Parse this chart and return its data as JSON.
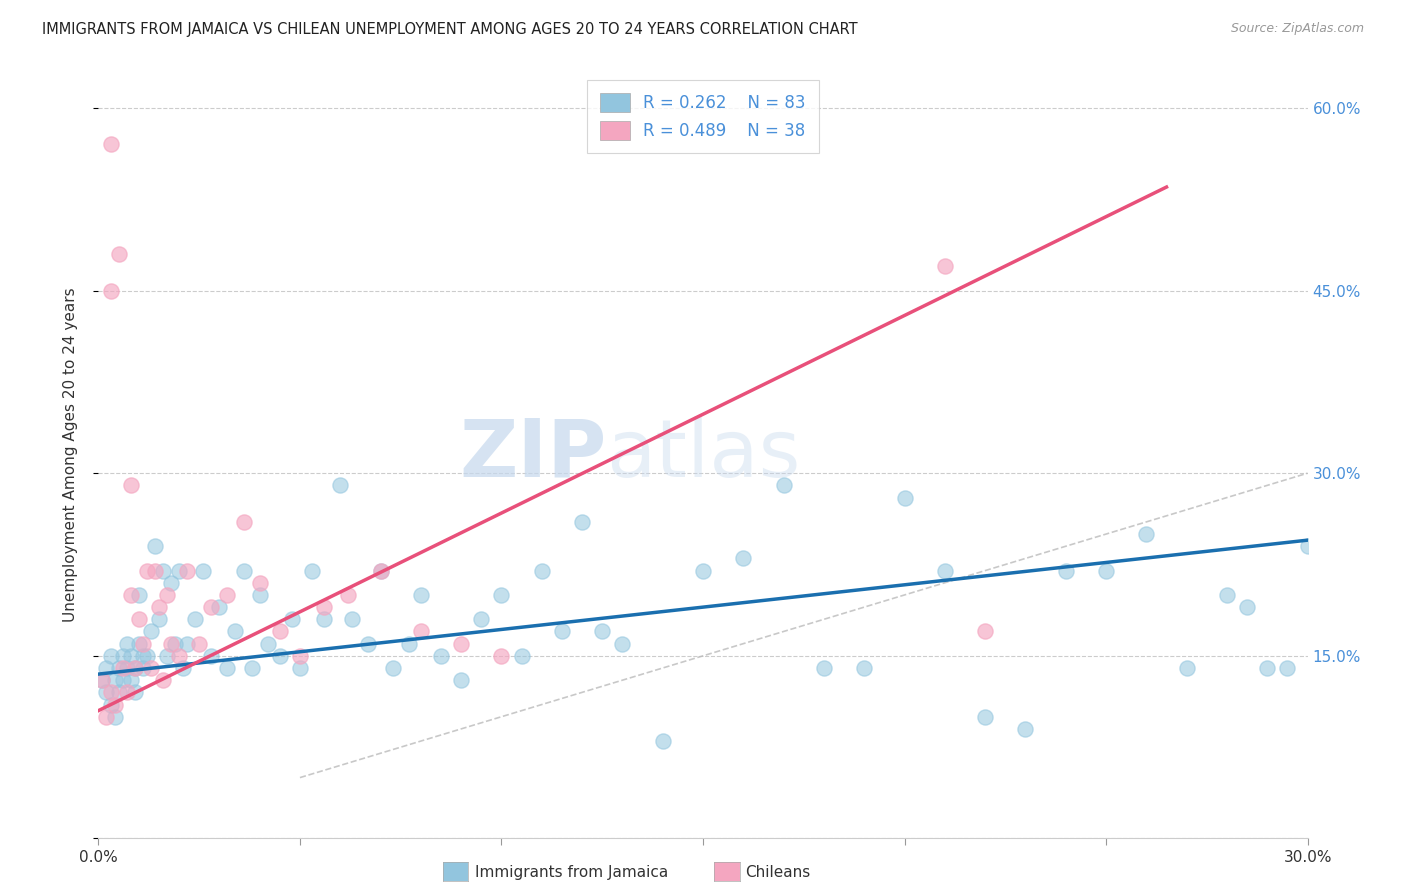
{
  "title": "IMMIGRANTS FROM JAMAICA VS CHILEAN UNEMPLOYMENT AMONG AGES 20 TO 24 YEARS CORRELATION CHART",
  "source": "Source: ZipAtlas.com",
  "ylabel": "Unemployment Among Ages 20 to 24 years",
  "x_min": 0.0,
  "x_max": 0.3,
  "y_min": 0.05,
  "y_max": 0.63,
  "x_ticks": [
    0.0,
    0.05,
    0.1,
    0.15,
    0.2,
    0.25,
    0.3
  ],
  "y_ticks": [
    0.0,
    0.15,
    0.3,
    0.45,
    0.6
  ],
  "y_tick_labels_right": [
    "",
    "15.0%",
    "30.0%",
    "45.0%",
    "60.0%"
  ],
  "legend_r1": "R = 0.262",
  "legend_n1": "N = 83",
  "legend_r2": "R = 0.489",
  "legend_n2": "N = 38",
  "color_blue": "#92c5de",
  "color_pink": "#f4a6c0",
  "color_blue_line": "#1a6faf",
  "color_pink_line": "#e8507a",
  "color_dashed_diag": "#bbbbbb",
  "watermark_zip": "ZIP",
  "watermark_atlas": "atlas",
  "blue_scatter_x": [
    0.001,
    0.002,
    0.002,
    0.003,
    0.003,
    0.004,
    0.004,
    0.005,
    0.005,
    0.006,
    0.006,
    0.007,
    0.007,
    0.008,
    0.008,
    0.009,
    0.009,
    0.01,
    0.01,
    0.011,
    0.011,
    0.012,
    0.013,
    0.014,
    0.015,
    0.016,
    0.017,
    0.018,
    0.019,
    0.02,
    0.021,
    0.022,
    0.024,
    0.026,
    0.028,
    0.03,
    0.032,
    0.034,
    0.036,
    0.038,
    0.04,
    0.042,
    0.045,
    0.048,
    0.05,
    0.053,
    0.056,
    0.06,
    0.063,
    0.067,
    0.07,
    0.073,
    0.077,
    0.08,
    0.085,
    0.09,
    0.095,
    0.1,
    0.105,
    0.11,
    0.115,
    0.12,
    0.125,
    0.13,
    0.14,
    0.15,
    0.16,
    0.17,
    0.18,
    0.19,
    0.2,
    0.21,
    0.22,
    0.23,
    0.24,
    0.25,
    0.26,
    0.27,
    0.28,
    0.285,
    0.29,
    0.295,
    0.3
  ],
  "blue_scatter_y": [
    0.13,
    0.14,
    0.12,
    0.15,
    0.11,
    0.13,
    0.1,
    0.14,
    0.12,
    0.15,
    0.13,
    0.14,
    0.16,
    0.13,
    0.15,
    0.14,
    0.12,
    0.16,
    0.2,
    0.15,
    0.14,
    0.15,
    0.17,
    0.24,
    0.18,
    0.22,
    0.15,
    0.21,
    0.16,
    0.22,
    0.14,
    0.16,
    0.18,
    0.22,
    0.15,
    0.19,
    0.14,
    0.17,
    0.22,
    0.14,
    0.2,
    0.16,
    0.15,
    0.18,
    0.14,
    0.22,
    0.18,
    0.29,
    0.18,
    0.16,
    0.22,
    0.14,
    0.16,
    0.2,
    0.15,
    0.13,
    0.18,
    0.2,
    0.15,
    0.22,
    0.17,
    0.26,
    0.17,
    0.16,
    0.08,
    0.22,
    0.23,
    0.29,
    0.14,
    0.14,
    0.28,
    0.22,
    0.1,
    0.09,
    0.22,
    0.22,
    0.25,
    0.14,
    0.2,
    0.19,
    0.14,
    0.14,
    0.24
  ],
  "pink_scatter_x": [
    0.001,
    0.002,
    0.003,
    0.003,
    0.004,
    0.005,
    0.006,
    0.007,
    0.008,
    0.009,
    0.01,
    0.011,
    0.012,
    0.013,
    0.014,
    0.015,
    0.016,
    0.017,
    0.018,
    0.02,
    0.022,
    0.025,
    0.028,
    0.032,
    0.036,
    0.04,
    0.045,
    0.05,
    0.056,
    0.062,
    0.07,
    0.08,
    0.09,
    0.1,
    0.21,
    0.22,
    0.003,
    0.008
  ],
  "pink_scatter_y": [
    0.13,
    0.1,
    0.12,
    0.57,
    0.11,
    0.48,
    0.14,
    0.12,
    0.2,
    0.14,
    0.18,
    0.16,
    0.22,
    0.14,
    0.22,
    0.19,
    0.13,
    0.2,
    0.16,
    0.15,
    0.22,
    0.16,
    0.19,
    0.2,
    0.26,
    0.21,
    0.17,
    0.15,
    0.19,
    0.2,
    0.22,
    0.17,
    0.16,
    0.15,
    0.47,
    0.17,
    0.45,
    0.29
  ],
  "blue_line_x": [
    0.0,
    0.3
  ],
  "blue_line_y": [
    0.135,
    0.245
  ],
  "pink_line_x": [
    0.0,
    0.265
  ],
  "pink_line_y": [
    0.105,
    0.535
  ],
  "diag_line_x": [
    0.05,
    0.3
  ],
  "diag_line_y": [
    0.05,
    0.3
  ]
}
